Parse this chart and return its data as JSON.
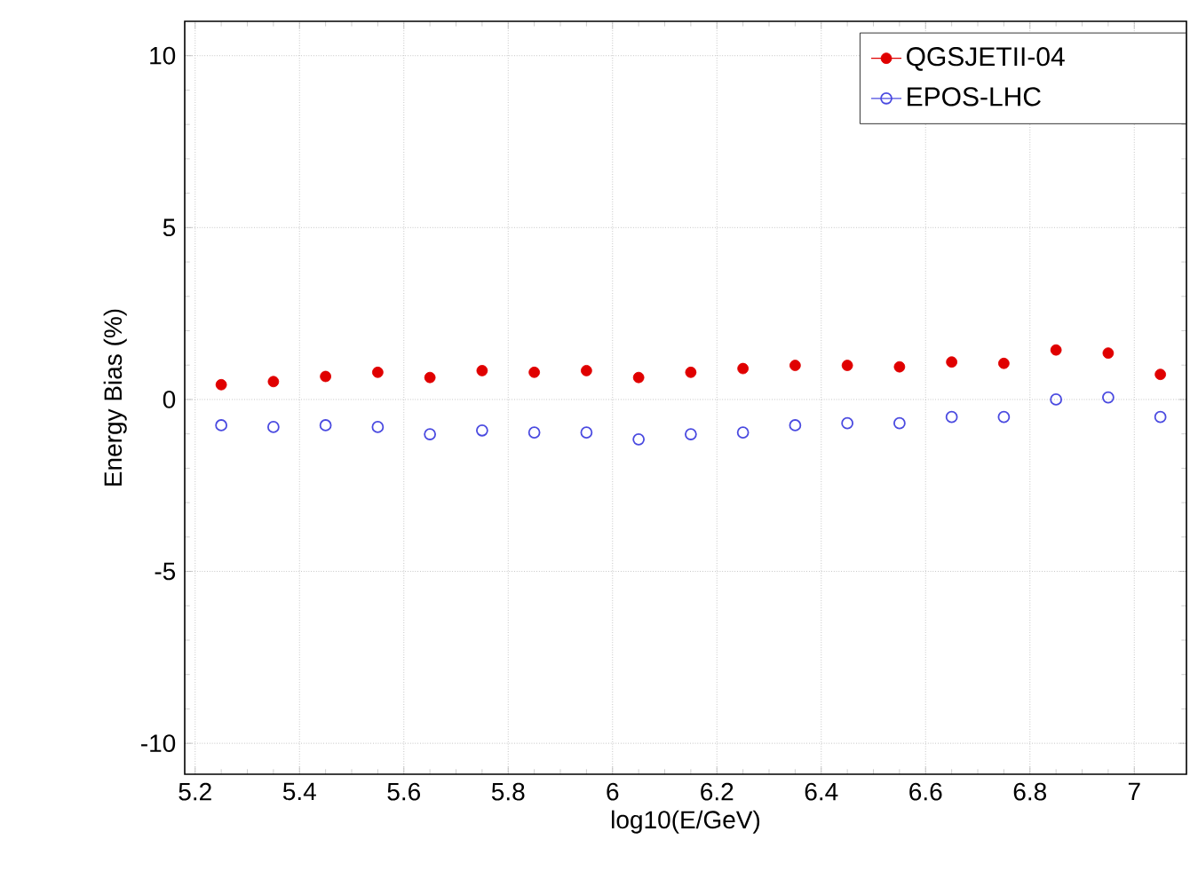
{
  "chart_data": {
    "type": "scatter",
    "xlabel": "log10(E/GeV)",
    "ylabel": "Energy Bias (%)",
    "xlim": [
      5.18,
      7.1
    ],
    "ylim": [
      -10.9,
      11.0
    ],
    "xticks": [
      5.2,
      5.4,
      5.6,
      5.8,
      6,
      6.2,
      6.4,
      6.6,
      6.8,
      7
    ],
    "yticks": [
      -10,
      -5,
      0,
      5,
      10
    ],
    "grid": true,
    "legend": "top right",
    "x": [
      5.25,
      5.35,
      5.45,
      5.55,
      5.65,
      5.75,
      5.85,
      5.95,
      6.05,
      6.15,
      6.25,
      6.35,
      6.45,
      6.55,
      6.65,
      6.75,
      6.85,
      6.95,
      7.05
    ],
    "series": [
      {
        "name": "QGSJETII-04",
        "color": "#e00000",
        "marker": "circle",
        "values": [
          0.43,
          0.52,
          0.67,
          0.79,
          0.64,
          0.84,
          0.79,
          0.84,
          0.64,
          0.79,
          0.9,
          0.99,
          0.99,
          0.95,
          1.09,
          1.05,
          1.44,
          1.35,
          0.73
        ]
      },
      {
        "name": "EPOS-LHC",
        "color": "#4a4ae0",
        "marker": "open circle",
        "values": [
          -0.75,
          -0.8,
          -0.75,
          -0.8,
          -1.01,
          -0.9,
          -0.96,
          -0.96,
          -1.16,
          -1.01,
          -0.96,
          -0.75,
          -0.69,
          -0.69,
          -0.51,
          -0.51,
          0,
          0.06,
          -0.51
        ]
      }
    ]
  }
}
